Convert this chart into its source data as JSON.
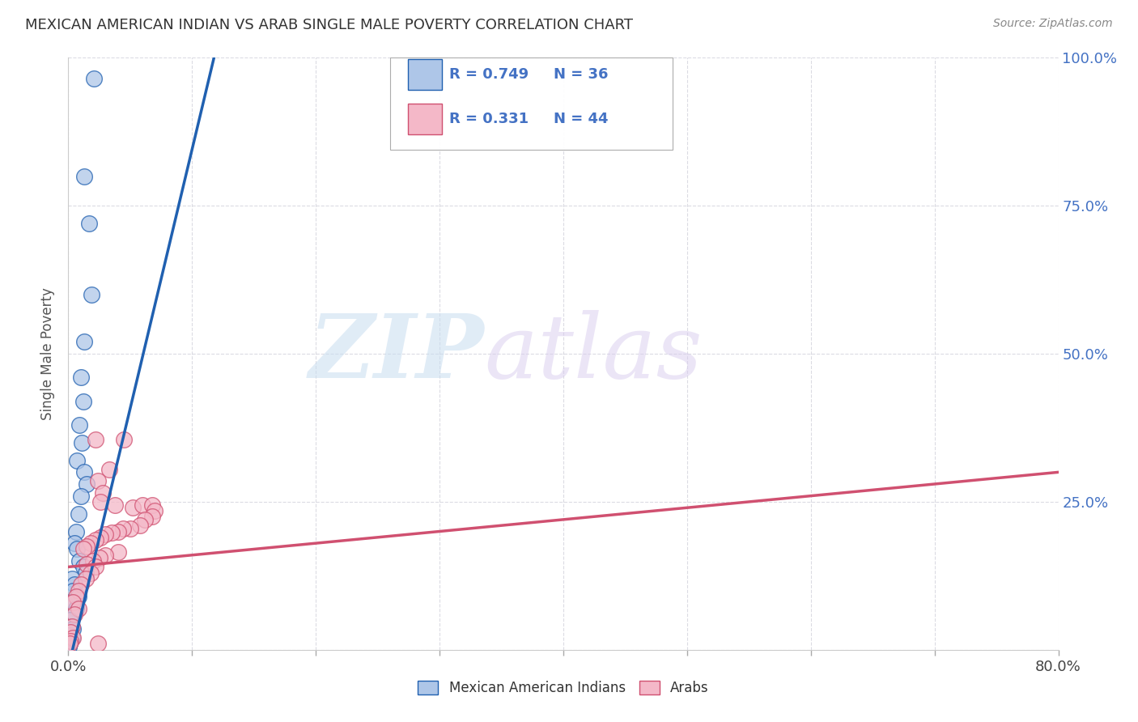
{
  "title": "MEXICAN AMERICAN INDIAN VS ARAB SINGLE MALE POVERTY CORRELATION CHART",
  "source": "Source: ZipAtlas.com",
  "legend_label1": "Mexican American Indians",
  "legend_label2": "Arabs",
  "R1": "0.749",
  "N1": "36",
  "R2": "0.331",
  "N2": "44",
  "color_blue": "#aec6e8",
  "color_pink": "#f4b8c8",
  "line_blue": "#2060b0",
  "line_pink": "#d05070",
  "ylabel": "Single Male Poverty",
  "xlim": [
    0.0,
    0.8
  ],
  "ylim": [
    0.0,
    1.0
  ],
  "xticks": [
    0.0,
    0.1,
    0.2,
    0.3,
    0.4,
    0.5,
    0.6,
    0.7,
    0.8
  ],
  "yticks": [
    0.0,
    0.25,
    0.5,
    0.75,
    1.0
  ],
  "background": "#ffffff",
  "grid_color": "#d8d8e0",
  "blue_line_x": [
    0.0,
    0.12
  ],
  "blue_line_y": [
    -0.03,
    1.02
  ],
  "pink_line_x": [
    0.0,
    0.8
  ],
  "pink_line_y": [
    0.14,
    0.3
  ],
  "blue_dots": [
    [
      0.021,
      0.965
    ],
    [
      0.013,
      0.8
    ],
    [
      0.017,
      0.72
    ],
    [
      0.019,
      0.6
    ],
    [
      0.013,
      0.52
    ],
    [
      0.01,
      0.46
    ],
    [
      0.012,
      0.42
    ],
    [
      0.009,
      0.38
    ],
    [
      0.011,
      0.35
    ],
    [
      0.007,
      0.32
    ],
    [
      0.013,
      0.3
    ],
    [
      0.015,
      0.28
    ],
    [
      0.01,
      0.26
    ],
    [
      0.008,
      0.23
    ],
    [
      0.006,
      0.2
    ],
    [
      0.005,
      0.18
    ],
    [
      0.007,
      0.17
    ],
    [
      0.009,
      0.15
    ],
    [
      0.012,
      0.14
    ],
    [
      0.014,
      0.13
    ],
    [
      0.003,
      0.12
    ],
    [
      0.005,
      0.11
    ],
    [
      0.004,
      0.1
    ],
    [
      0.008,
      0.09
    ],
    [
      0.002,
      0.08
    ],
    [
      0.006,
      0.07
    ],
    [
      0.003,
      0.06
    ],
    [
      0.001,
      0.05
    ],
    [
      0.002,
      0.04
    ],
    [
      0.004,
      0.035
    ],
    [
      0.001,
      0.025
    ],
    [
      0.003,
      0.02
    ],
    [
      0.002,
      0.015
    ],
    [
      0.001,
      0.01
    ],
    [
      0.0005,
      0.008
    ],
    [
      0.0005,
      0.005
    ]
  ],
  "pink_dots": [
    [
      0.022,
      0.355
    ],
    [
      0.033,
      0.305
    ],
    [
      0.045,
      0.355
    ],
    [
      0.024,
      0.285
    ],
    [
      0.028,
      0.265
    ],
    [
      0.026,
      0.25
    ],
    [
      0.038,
      0.245
    ],
    [
      0.052,
      0.24
    ],
    [
      0.06,
      0.245
    ],
    [
      0.068,
      0.245
    ],
    [
      0.07,
      0.235
    ],
    [
      0.068,
      0.225
    ],
    [
      0.062,
      0.22
    ],
    [
      0.058,
      0.21
    ],
    [
      0.05,
      0.205
    ],
    [
      0.044,
      0.205
    ],
    [
      0.04,
      0.2
    ],
    [
      0.035,
      0.198
    ],
    [
      0.03,
      0.195
    ],
    [
      0.026,
      0.19
    ],
    [
      0.022,
      0.185
    ],
    [
      0.018,
      0.18
    ],
    [
      0.015,
      0.175
    ],
    [
      0.012,
      0.17
    ],
    [
      0.04,
      0.165
    ],
    [
      0.03,
      0.16
    ],
    [
      0.025,
      0.155
    ],
    [
      0.02,
      0.15
    ],
    [
      0.015,
      0.145
    ],
    [
      0.022,
      0.14
    ],
    [
      0.018,
      0.13
    ],
    [
      0.014,
      0.12
    ],
    [
      0.01,
      0.11
    ],
    [
      0.008,
      0.1
    ],
    [
      0.006,
      0.09
    ],
    [
      0.004,
      0.08
    ],
    [
      0.008,
      0.07
    ],
    [
      0.005,
      0.06
    ],
    [
      0.003,
      0.04
    ],
    [
      0.002,
      0.03
    ],
    [
      0.004,
      0.02
    ],
    [
      0.002,
      0.015
    ],
    [
      0.001,
      0.01
    ],
    [
      0.024,
      0.01
    ]
  ]
}
